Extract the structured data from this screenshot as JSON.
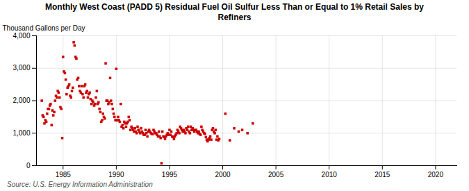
{
  "chart_data": {
    "type": "scatter",
    "title": "Monthly West Coast (PADD 5) Residual Fuel Oil Sulfur Less Than or Equal to 1% Retail Sales by\nRefiners",
    "ylabel": "Thousand Gallons per Day",
    "annotations": [
      "Source: U.S. Energy Information Administration"
    ],
    "color": "#cc0000",
    "marker": "square",
    "grid": true,
    "xlim": [
      1982.5,
      2022
    ],
    "ylim": [
      0,
      4000
    ],
    "xticks": [
      1985,
      1990,
      1995,
      2000,
      2005,
      2010,
      2015,
      2020
    ],
    "yticks": [
      0,
      {
        "value": 1000,
        "label": "1,000"
      },
      {
        "value": 2000,
        "label": "2,000"
      },
      {
        "value": 3000,
        "label": "3,000"
      },
      {
        "value": 4000,
        "label": "4,000"
      }
    ],
    "x": [
      1983.0,
      1983.08,
      1983.17,
      1983.25,
      1983.33,
      1983.42,
      1983.5,
      1983.58,
      1983.67,
      1983.75,
      1983.83,
      1983.92,
      1984.0,
      1984.08,
      1984.17,
      1984.25,
      1984.33,
      1984.42,
      1984.5,
      1984.58,
      1984.67,
      1984.75,
      1984.83,
      1984.92,
      1985.0,
      1985.08,
      1985.17,
      1985.25,
      1985.33,
      1985.42,
      1985.5,
      1985.58,
      1985.67,
      1985.75,
      1985.83,
      1985.92,
      1986.0,
      1986.08,
      1986.17,
      1986.25,
      1986.33,
      1986.42,
      1986.5,
      1986.58,
      1986.67,
      1986.75,
      1986.83,
      1986.92,
      1987.0,
      1987.08,
      1987.17,
      1987.25,
      1987.33,
      1987.42,
      1987.5,
      1987.58,
      1987.67,
      1987.75,
      1987.83,
      1987.92,
      1988.0,
      1988.08,
      1988.17,
      1988.25,
      1988.33,
      1988.42,
      1988.5,
      1988.58,
      1988.67,
      1988.75,
      1988.83,
      1988.92,
      1989.0,
      1989.08,
      1989.17,
      1989.25,
      1989.33,
      1989.42,
      1989.5,
      1989.58,
      1989.67,
      1989.75,
      1989.83,
      1989.92,
      1990.0,
      1990.08,
      1990.17,
      1990.25,
      1990.33,
      1990.42,
      1990.5,
      1990.58,
      1990.67,
      1990.75,
      1990.83,
      1990.92,
      1991.0,
      1991.08,
      1991.17,
      1991.25,
      1991.33,
      1991.42,
      1991.5,
      1991.58,
      1991.67,
      1991.75,
      1991.83,
      1991.92,
      1992.0,
      1992.08,
      1992.17,
      1992.25,
      1992.33,
      1992.42,
      1992.5,
      1992.58,
      1992.67,
      1992.75,
      1992.83,
      1992.92,
      1993.0,
      1993.08,
      1993.17,
      1993.25,
      1993.33,
      1993.42,
      1993.5,
      1993.58,
      1993.67,
      1993.75,
      1993.83,
      1993.92,
      1994.0,
      1994.08,
      1994.17,
      1994.25,
      1994.33,
      1994.42,
      1994.5,
      1994.58,
      1994.67,
      1994.75,
      1994.83,
      1994.92,
      1995.0,
      1995.08,
      1995.17,
      1995.25,
      1995.33,
      1995.42,
      1995.5,
      1995.58,
      1995.67,
      1995.75,
      1995.83,
      1995.92,
      1996.0,
      1996.08,
      1996.17,
      1996.25,
      1996.33,
      1996.42,
      1996.5,
      1996.58,
      1996.67,
      1996.75,
      1996.83,
      1996.92,
      1997.0,
      1997.08,
      1997.17,
      1997.25,
      1997.33,
      1997.42,
      1997.5,
      1997.58,
      1997.67,
      1997.75,
      1997.83,
      1997.92,
      1998.0,
      1998.08,
      1998.17,
      1998.25,
      1998.33,
      1998.42,
      1998.5,
      1998.58,
      1998.67,
      1998.75,
      1998.83,
      1998.92,
      1999.0,
      1999.08,
      1999.17,
      1999.25,
      1999.33,
      1999.42,
      1999.5,
      1999.58,
      1999.67,
      2000.25,
      2000.67,
      2001.08,
      2001.5,
      2001.83,
      2002.33,
      2002.83
    ],
    "values": [
      2000,
      1550,
      1500,
      1300,
      1400,
      1350,
      1600,
      1750,
      1750,
      1850,
      1900,
      1250,
      1700,
      1550,
      1650,
      2000,
      2150,
      2100,
      2300,
      2250,
      2100,
      1800,
      1750,
      850,
      3350,
      2900,
      2850,
      2650,
      2200,
      2400,
      2450,
      2500,
      2150,
      2100,
      2300,
      2400,
      3800,
      3700,
      3350,
      3300,
      2650,
      2700,
      2450,
      2300,
      2250,
      2450,
      2200,
      2100,
      2450,
      2500,
      2250,
      2300,
      2100,
      2200,
      2250,
      2050,
      1900,
      2000,
      1950,
      1850,
      1900,
      2100,
      2300,
      1900,
      1950,
      1750,
      1650,
      1350,
      1400,
      1600,
      1500,
      1450,
      3150,
      2000,
      2000,
      1900,
      1950,
      2700,
      2000,
      1900,
      1750,
      1600,
      1500,
      1400,
      2980,
      1400,
      1500,
      1400,
      1350,
      1900,
      1200,
      1250,
      1150,
      1350,
      1300,
      1200,
      1300,
      1350,
      1500,
      1400,
      1100,
      1200,
      1150,
      1100,
      1050,
      1150,
      1050,
      1000,
      1200,
      1100,
      1050,
      1000,
      1150,
      1050,
      1000,
      950,
      950,
      1100,
      1000,
      900,
      1050,
      1100,
      1050,
      1000,
      980,
      970,
      1100,
      1050,
      1000,
      1000,
      950,
      900,
      1050,
      900,
      850,
      75,
      1050,
      900,
      880,
      820,
      900,
      950,
      1000,
      950,
      1100,
      950,
      1050,
      900,
      880,
      820,
      900,
      950,
      1000,
      1100,
      1050,
      1000,
      1200,
      1150,
      1100,
      1050,
      1100,
      1050,
      1000,
      1150,
      1100,
      1200,
      1050,
      1000,
      1200,
      1100,
      1150,
      1100,
      1050,
      1100,
      1100,
      1050,
      1000,
      1050,
      980,
      950,
      1200,
      1100,
      1050,
      1000,
      980,
      880,
      800,
      750,
      800,
      850,
      900,
      800,
      1100,
      1150,
      1050,
      1000,
      1100,
      800,
      900,
      780,
      820,
      1600,
      780,
      1150,
      1050,
      1100,
      1000,
      1300
    ]
  }
}
